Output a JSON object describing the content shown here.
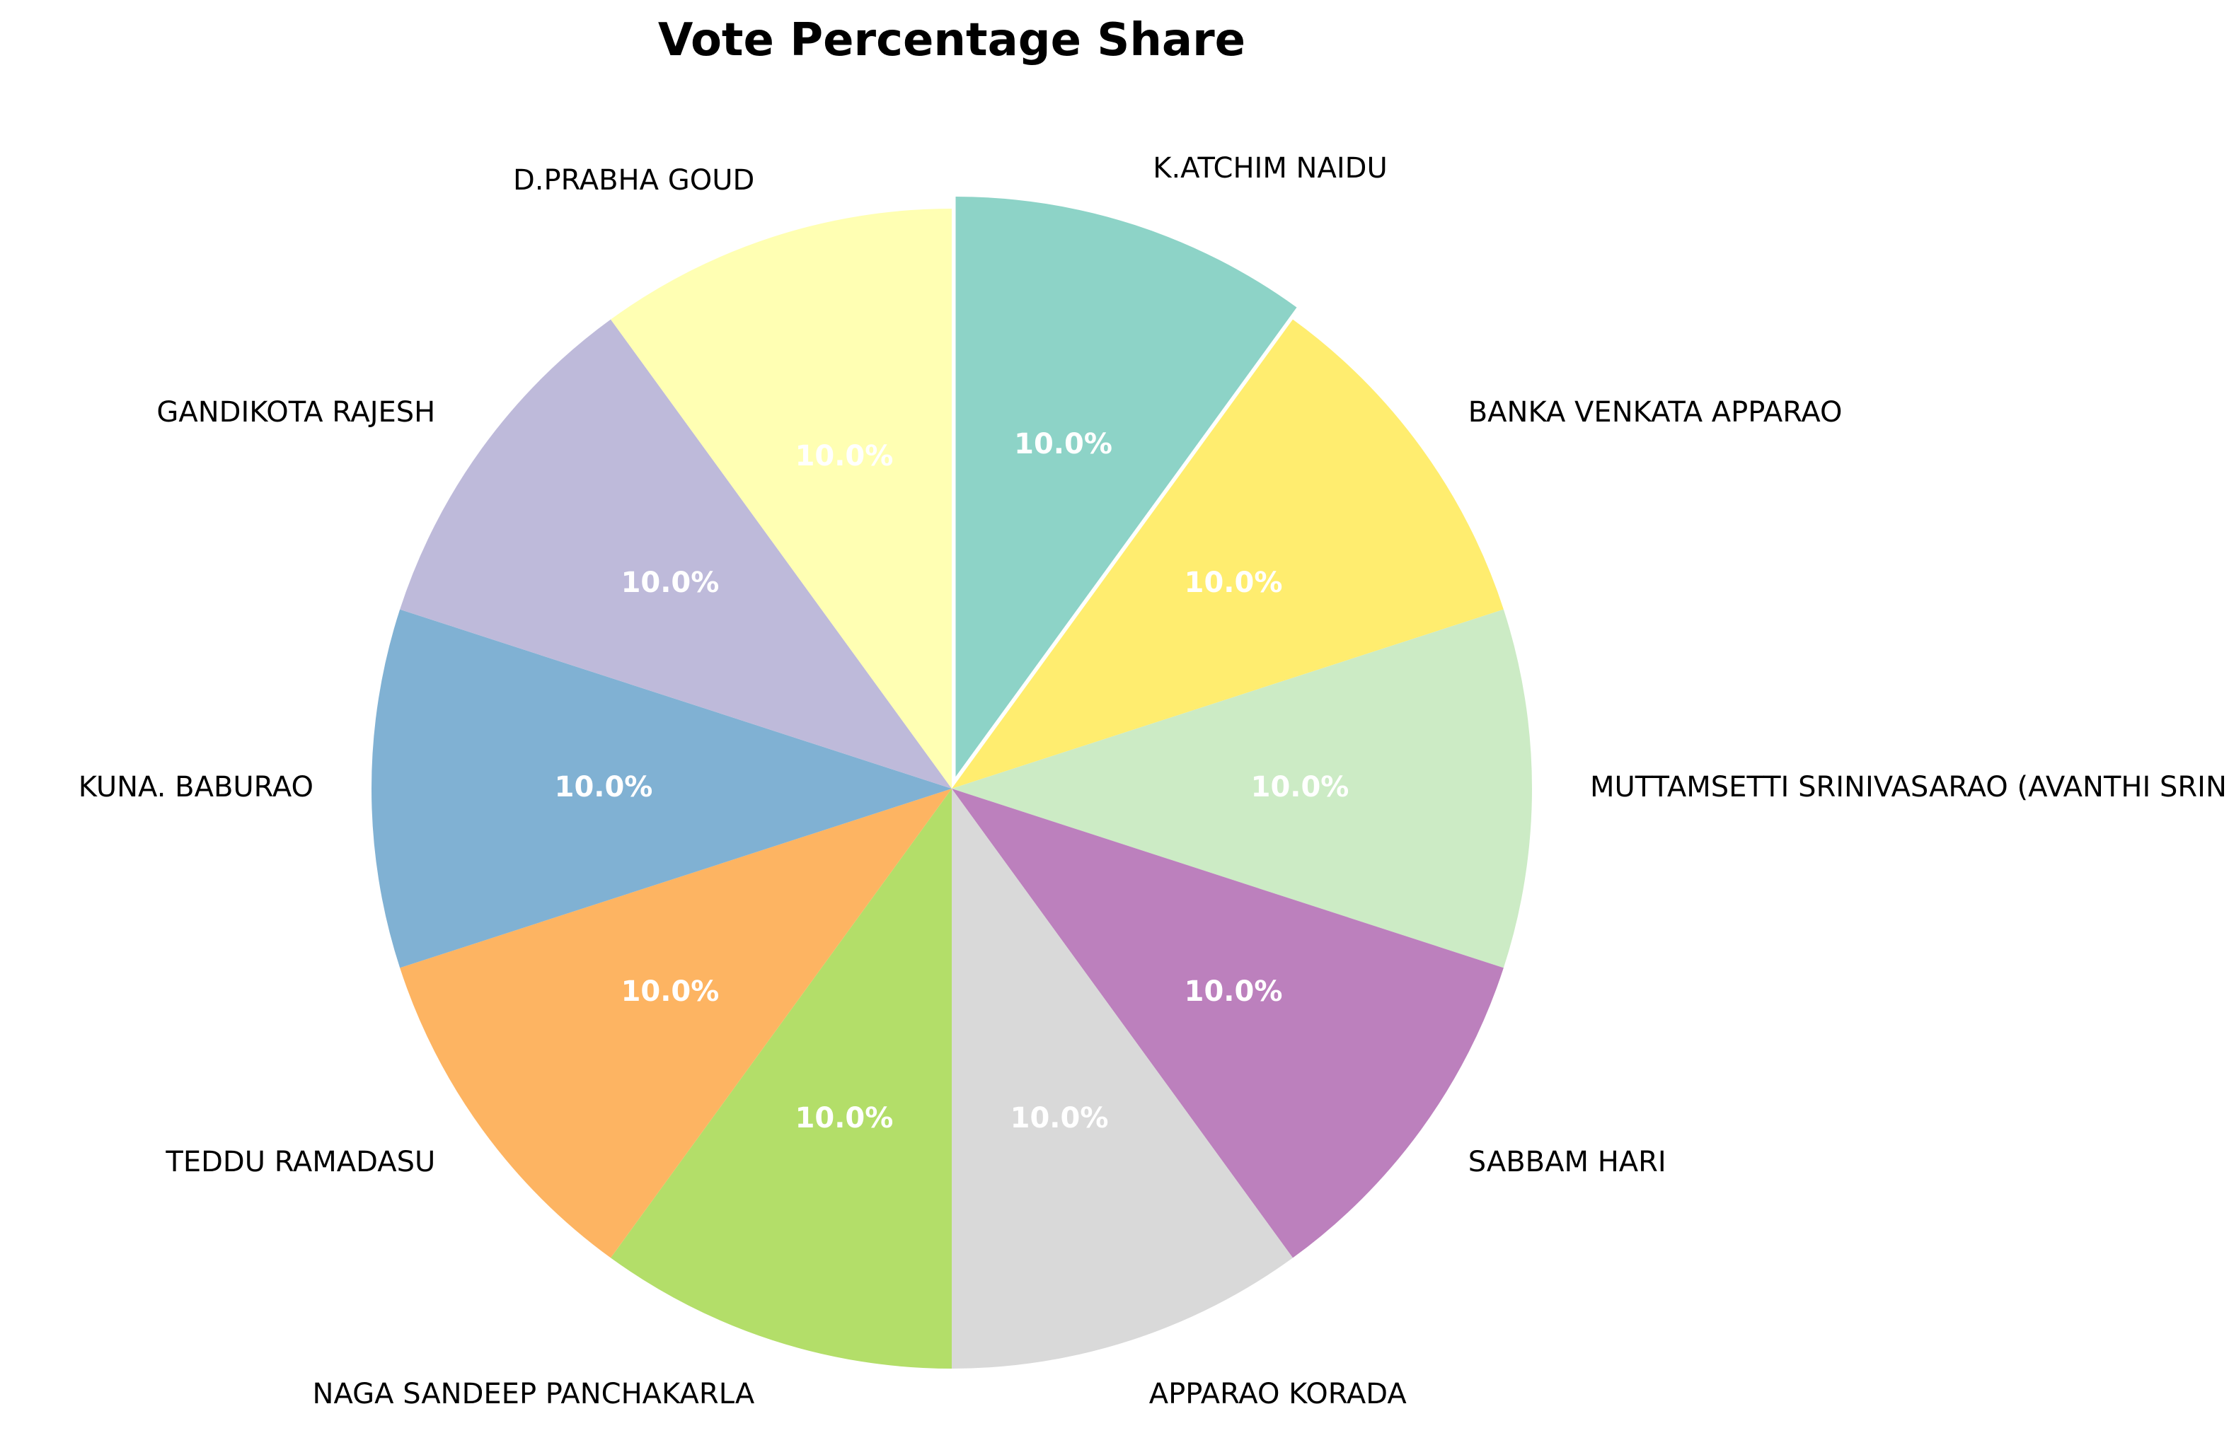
{
  "chart_data": {
    "type": "pie",
    "title": "Vote Percentage Share",
    "start_angle_deg": 90,
    "direction": "clockwise",
    "slices": [
      {
        "label": "K.ATCHIM NAIDU",
        "value": 10.0,
        "pct_label": "10.0%",
        "color": "#8dd3c7",
        "exploded": true
      },
      {
        "label": "BANKA VENKATA APPARAO",
        "value": 10.0,
        "pct_label": "10.0%",
        "color": "#ffed6f",
        "exploded": false
      },
      {
        "label": "MUTTAMSETTI SRINIVASARAO (AVANTHI SRINIVAS)",
        "value": 10.0,
        "pct_label": "10.0%",
        "color": "#ccebc5",
        "exploded": false
      },
      {
        "label": "SABBAM HARI",
        "value": 10.0,
        "pct_label": "10.0%",
        "color": "#bc80bd",
        "exploded": false
      },
      {
        "label": "APPARAO KORADA",
        "value": 10.0,
        "pct_label": "10.0%",
        "color": "#d9d9d9",
        "exploded": false
      },
      {
        "label": "NAGA SANDEEP PANCHAKARLA",
        "value": 10.0,
        "pct_label": "10.0%",
        "color": "#b3de69",
        "exploded": false
      },
      {
        "label": "TEDDU RAMADASU",
        "value": 10.0,
        "pct_label": "10.0%",
        "color": "#fdb462",
        "exploded": false
      },
      {
        "label": "KUNA. BABURAO",
        "value": 10.0,
        "pct_label": "10.0%",
        "color": "#80b1d3",
        "exploded": false
      },
      {
        "label": "GANDIKOTA RAJESH",
        "value": 10.0,
        "pct_label": "10.0%",
        "color": "#bebada",
        "exploded": false
      },
      {
        "label": "D.PRABHA GOUD",
        "value": 10.0,
        "pct_label": "10.0%",
        "color": "#ffffb3",
        "exploded": false
      }
    ]
  }
}
